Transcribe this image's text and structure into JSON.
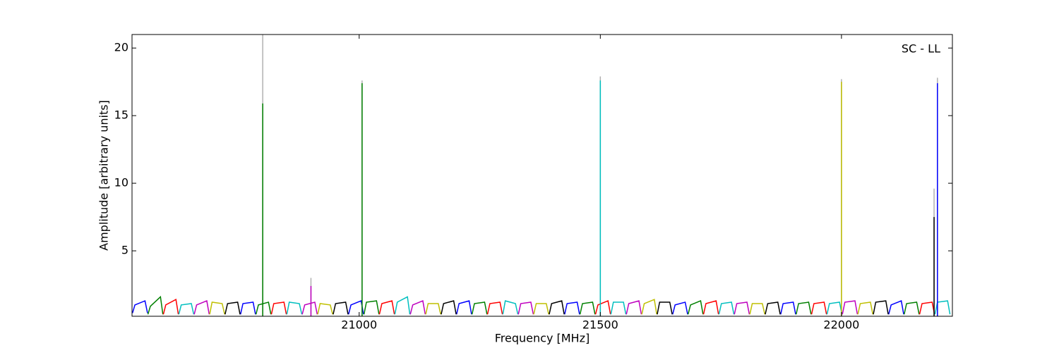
{
  "chart_data": {
    "type": "line",
    "annotation": "SC - LL",
    "xlabel": "Frequency [MHz]",
    "ylabel": "Amplitude [arbitrary units]",
    "xlim": [
      20529,
      22230
    ],
    "ylim": [
      0.16,
      21
    ],
    "xticks": [
      21000,
      21500,
      22000
    ],
    "yticks": [
      5,
      10,
      15,
      20
    ],
    "series": [
      {
        "color": "#0000ff",
        "x": [
          20530,
          20535,
          20556,
          20561,
          null,
          20754,
          20759,
          20780,
          20785,
          null,
          20978,
          20983,
          21004,
          21009,
          null,
          21202,
          21207,
          21228,
          21233,
          null,
          21426,
          21431,
          21452,
          21457,
          null,
          21650,
          21655,
          21676,
          21681,
          null,
          21874,
          21879,
          21900,
          21905,
          null,
          22098,
          22103,
          22124,
          22129
        ],
        "values": [
          0.4,
          1.0,
          1.3,
          0.4,
          null,
          0.3,
          1.1,
          1.2,
          0.3,
          null,
          0.3,
          1.0,
          1.3,
          0.3,
          null,
          0.3,
          1.1,
          1.3,
          0.3,
          null,
          0.3,
          1.1,
          1.2,
          0.3,
          null,
          0.3,
          1.0,
          1.2,
          0.3,
          null,
          0.3,
          1.1,
          1.2,
          0.3,
          null,
          0.3,
          1.0,
          1.3,
          0.3
        ]
      },
      {
        "color": "#008000",
        "x": [
          20562,
          20567,
          20588,
          20593,
          null,
          20786,
          20791,
          20812,
          20817,
          null,
          21010,
          21015,
          21036,
          21041,
          null,
          21234,
          21239,
          21260,
          21265,
          null,
          21458,
          21463,
          21484,
          21489,
          null,
          21682,
          21687,
          21708,
          21713,
          null,
          21906,
          21911,
          21932,
          21937,
          null,
          22130,
          22135,
          22156,
          22161
        ],
        "values": [
          0.3,
          0.9,
          1.6,
          0.3,
          null,
          0.3,
          1.0,
          1.2,
          0.3,
          null,
          0.3,
          1.2,
          1.3,
          0.3,
          null,
          0.3,
          1.1,
          1.2,
          0.3,
          null,
          0.3,
          1.1,
          1.2,
          0.3,
          null,
          0.3,
          1.0,
          1.3,
          0.3,
          null,
          0.3,
          1.1,
          1.2,
          0.3,
          null,
          0.3,
          1.1,
          1.2,
          0.3
        ]
      },
      {
        "color": "#ff0000",
        "x": [
          20594,
          20599,
          20620,
          20625,
          null,
          20818,
          20823,
          20844,
          20849,
          null,
          21042,
          21047,
          21068,
          21073,
          null,
          21266,
          21271,
          21292,
          21297,
          null,
          21490,
          21495,
          21516,
          21521,
          null,
          21714,
          21719,
          21740,
          21745,
          null,
          21938,
          21943,
          21964,
          21969,
          null,
          22162,
          22167,
          22188,
          22193
        ],
        "values": [
          0.3,
          1.0,
          1.4,
          0.3,
          null,
          0.3,
          1.1,
          1.2,
          0.3,
          null,
          0.3,
          1.1,
          1.3,
          0.3,
          null,
          0.3,
          1.1,
          1.2,
          0.3,
          null,
          0.3,
          1.0,
          1.3,
          0.3,
          null,
          0.3,
          1.1,
          1.3,
          0.3,
          null,
          0.3,
          1.1,
          1.2,
          0.3,
          null,
          0.3,
          1.1,
          1.2,
          0.3
        ]
      },
      {
        "color": "#00bfbf",
        "x": [
          20626,
          20631,
          20652,
          20657,
          null,
          20850,
          20855,
          20876,
          20881,
          null,
          21074,
          21079,
          21100,
          21105,
          null,
          21298,
          21303,
          21324,
          21329,
          null,
          21522,
          21527,
          21548,
          21553,
          null,
          21746,
          21751,
          21772,
          21777,
          null,
          21970,
          21975,
          21996,
          22001,
          null,
          22194,
          22199,
          22220,
          22225
        ],
        "values": [
          0.3,
          1.0,
          1.1,
          0.3,
          null,
          0.3,
          1.2,
          1.1,
          0.3,
          null,
          0.3,
          1.2,
          1.6,
          0.3,
          null,
          0.3,
          1.3,
          1.1,
          0.3,
          null,
          0.3,
          1.2,
          1.2,
          0.3,
          null,
          0.3,
          1.1,
          1.2,
          0.3,
          null,
          0.3,
          1.1,
          1.2,
          0.3,
          null,
          0.3,
          1.2,
          1.3,
          0.3
        ]
      },
      {
        "color": "#bf00bf",
        "x": [
          20658,
          20663,
          20684,
          20689,
          null,
          20882,
          20887,
          20908,
          20913,
          null,
          21106,
          21111,
          21132,
          21137,
          null,
          21330,
          21335,
          21356,
          21361,
          null,
          21554,
          21559,
          21580,
          21585,
          null,
          21778,
          21783,
          21804,
          21809,
          null,
          22002,
          22007,
          22028,
          22033
        ],
        "values": [
          0.3,
          1.0,
          1.3,
          0.3,
          null,
          0.3,
          1.0,
          1.2,
          0.3,
          null,
          0.3,
          1.0,
          1.3,
          0.3,
          null,
          0.3,
          1.1,
          1.2,
          0.3,
          null,
          0.3,
          1.1,
          1.3,
          0.3,
          null,
          0.3,
          1.1,
          1.2,
          0.3,
          null,
          0.3,
          1.2,
          1.3,
          0.3
        ]
      },
      {
        "color": "#bfbf00",
        "x": [
          20690,
          20695,
          20716,
          20721,
          null,
          20914,
          20919,
          20940,
          20945,
          null,
          21138,
          21143,
          21164,
          21169,
          null,
          21362,
          21367,
          21388,
          21393,
          null,
          21586,
          21591,
          21612,
          21617,
          null,
          21810,
          21815,
          21836,
          21841,
          null,
          22034,
          22039,
          22060,
          22065
        ],
        "values": [
          0.3,
          1.2,
          1.1,
          0.3,
          null,
          0.3,
          1.1,
          1.0,
          0.3,
          null,
          0.3,
          1.1,
          1.1,
          0.3,
          null,
          0.3,
          1.1,
          1.1,
          0.3,
          null,
          0.3,
          1.1,
          1.4,
          0.3,
          null,
          0.3,
          1.1,
          1.1,
          0.3,
          null,
          0.3,
          1.1,
          1.2,
          0.3
        ]
      },
      {
        "color": "#000000",
        "x": [
          20722,
          20727,
          20748,
          20753,
          null,
          20946,
          20951,
          20972,
          20977,
          null,
          21170,
          21175,
          21196,
          21201,
          null,
          21394,
          21399,
          21420,
          21425,
          null,
          21618,
          21623,
          21644,
          21649,
          null,
          21842,
          21847,
          21868,
          21873,
          null,
          22066,
          22071,
          22092,
          22097
        ],
        "values": [
          0.3,
          1.1,
          1.2,
          0.3,
          null,
          0.3,
          1.1,
          1.2,
          0.3,
          null,
          0.3,
          1.1,
          1.3,
          0.3,
          null,
          0.3,
          1.1,
          1.3,
          0.3,
          null,
          0.3,
          1.2,
          1.2,
          0.3,
          null,
          0.3,
          1.1,
          1.2,
          0.3,
          null,
          0.3,
          1.2,
          1.3,
          0.3
        ]
      }
    ],
    "spikes": [
      {
        "x": 20800,
        "value": 15.9,
        "peak": 21,
        "color": "#008000"
      },
      {
        "x": 20900,
        "value": 2.4,
        "peak": 3.0,
        "color": "#bf00bf"
      },
      {
        "x": 21006,
        "value": 17.4,
        "peak": 17.6,
        "color": "#008000"
      },
      {
        "x": 21500,
        "value": 17.6,
        "peak": 17.9,
        "color": "#00bfbf"
      },
      {
        "x": 22000,
        "value": 17.5,
        "peak": 17.7,
        "color": "#bfbf00"
      },
      {
        "x": 22192,
        "value": 7.5,
        "peak": 9.6,
        "color": "#000000"
      },
      {
        "x": 22199,
        "value": 17.4,
        "peak": 17.8,
        "color": "#0000ff"
      }
    ]
  }
}
